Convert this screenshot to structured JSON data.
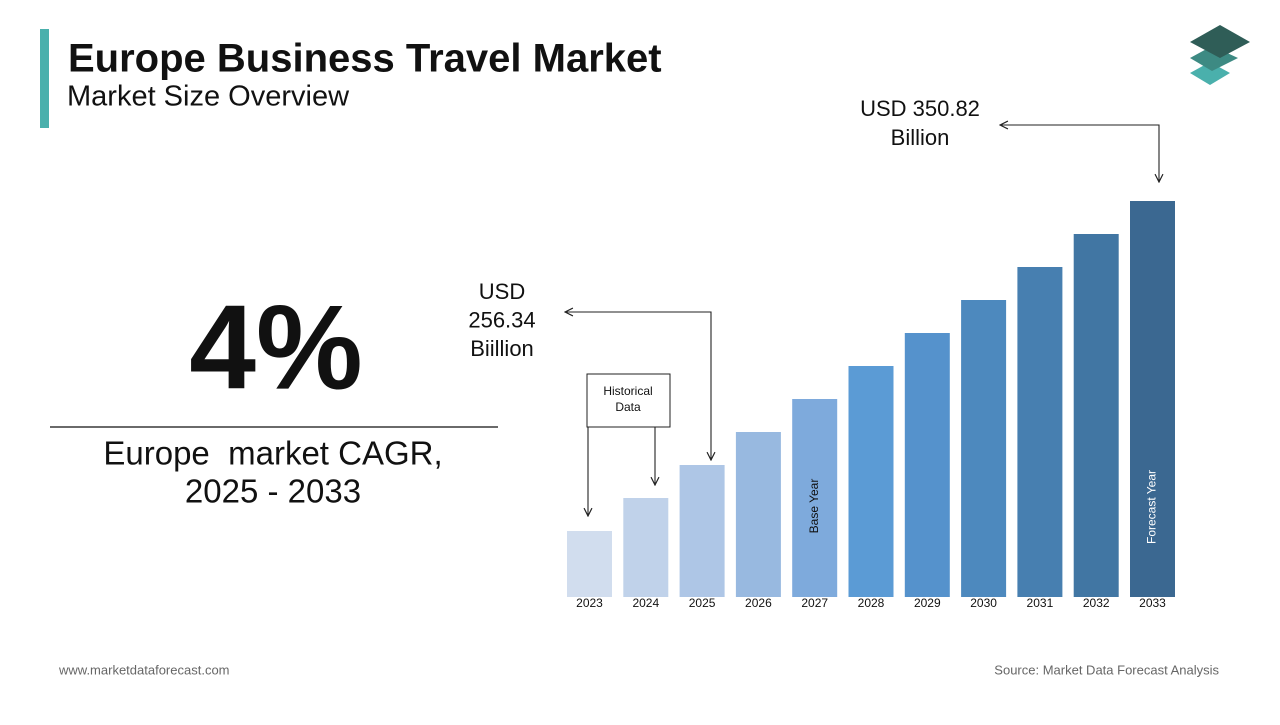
{
  "header": {
    "title": "Europe Business Travel Market",
    "subtitle": "Market Size Overview"
  },
  "kpi": {
    "value": "4%",
    "caption_line1": "Europe  market CAGR,",
    "caption_line2": "2025 - 2033"
  },
  "chart_data": {
    "type": "bar",
    "categories": [
      "2023",
      "2024",
      "2025",
      "2026",
      "2027",
      "2028",
      "2029",
      "2030",
      "2031",
      "2032",
      "2033"
    ],
    "values": [
      2,
      3,
      4,
      5,
      6,
      7,
      8,
      9,
      10,
      11,
      12
    ],
    "colors": [
      "#d1ddee",
      "#c0d2ea",
      "#aec6e6",
      "#98b9e0",
      "#7eaadc",
      "#5b9bd5",
      "#5592cc",
      "#4d89be",
      "#477fb0",
      "#4176a3",
      "#3b6891"
    ],
    "ylim": [
      0,
      12
    ],
    "annotations": {
      "start_value": "USD 256.34 Biillion",
      "end_value": "USD 350.82 Billion",
      "historical": "Historical Data",
      "base_year": "Base Year",
      "forecast_year": "Forecast Year"
    }
  },
  "footer": {
    "website": "www.marketdataforecast.com",
    "source": "Source: Market Data Forecast Analysis"
  }
}
